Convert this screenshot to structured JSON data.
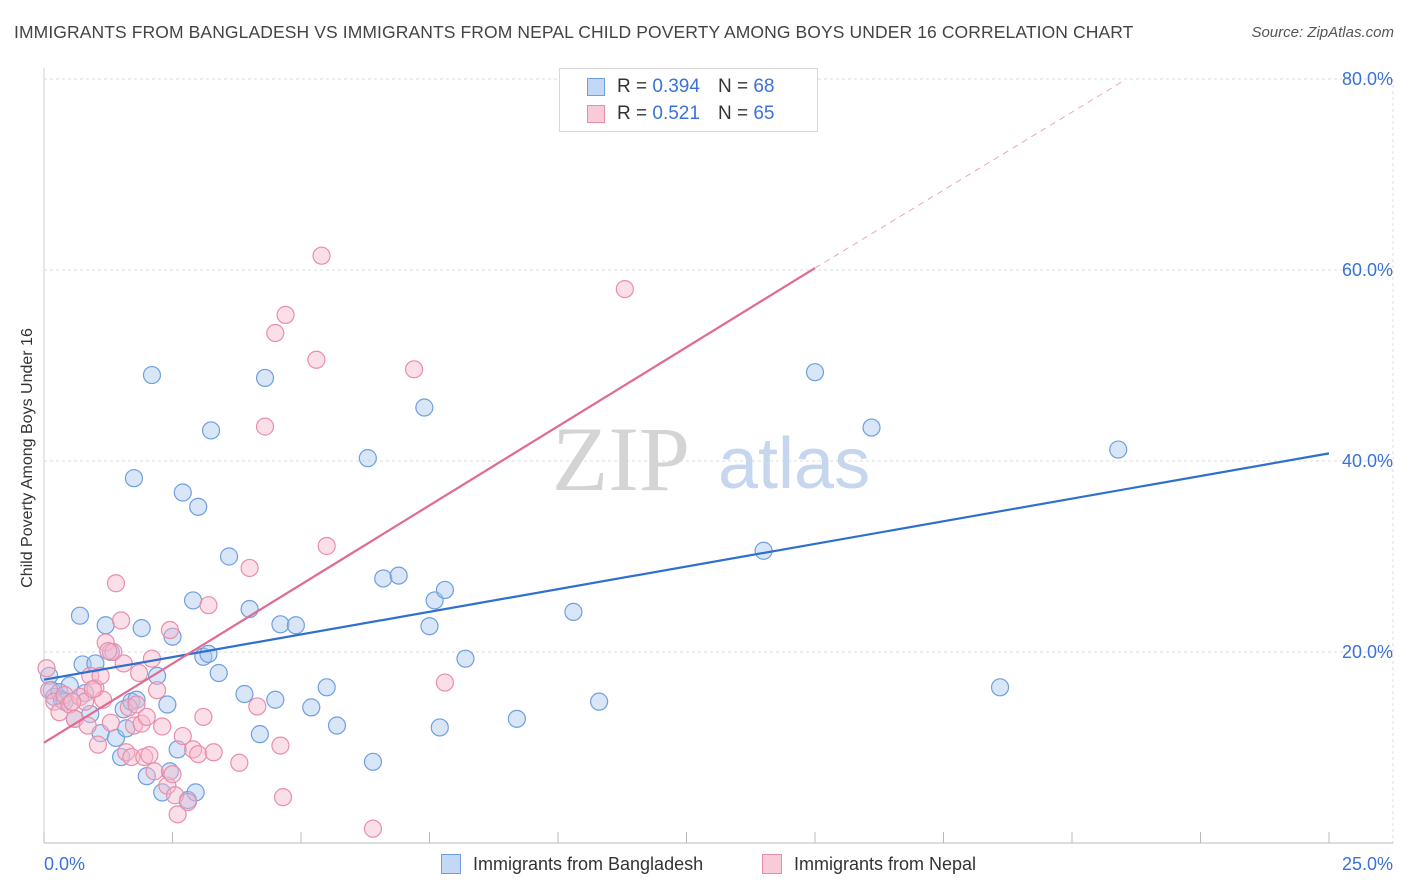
{
  "title": "IMMIGRANTS FROM BANGLADESH VS IMMIGRANTS FROM NEPAL CHILD POVERTY AMONG BOYS UNDER 16 CORRELATION CHART",
  "source": "Source: ZipAtlas.com",
  "watermark": {
    "zip": "ZIP",
    "atlas": "atlas"
  },
  "legend": [
    {
      "r_label": "R =",
      "r_value": "0.394",
      "n_label": "N =",
      "n_value": "68"
    },
    {
      "r_label": "R =",
      "r_value": "0.521",
      "n_label": "N =",
      "n_value": "65"
    }
  ],
  "colors": {
    "blue_fill": "#a9c8f0",
    "blue_stroke": "#6f9fe0",
    "blue_line": "#2f6fcf",
    "pink_fill": "#f7b9cc",
    "pink_stroke": "#e98eaa",
    "pink_line": "#e06a92",
    "tick_text": "#3a72d8",
    "grid": "#dddddd"
  },
  "chart_data": {
    "type": "scatter",
    "title": "IMMIGRANTS FROM BANGLADESH VS IMMIGRANTS FROM NEPAL CHILD POVERTY AMONG BOYS UNDER 16 CORRELATION CHART",
    "xlabel": "",
    "ylabel": "Child Poverty Among Boys Under 16",
    "xlim": [
      0,
      25
    ],
    "ylim": [
      0,
      80
    ],
    "x_tick_labels": [
      "0.0%",
      "25.0%"
    ],
    "y_ticks": [
      20,
      40,
      60,
      80
    ],
    "y_tick_labels": [
      "20.0%",
      "40.0%",
      "60.0%",
      "80.0%"
    ],
    "series": [
      {
        "name": "Immigrants from Bangladesh",
        "R": 0.394,
        "N": 68,
        "trend": {
          "x0": 0,
          "y0": 17.1,
          "x1": 25,
          "y1": 40.8
        },
        "points": [
          [
            0.1,
            17.5
          ],
          [
            0.15,
            16.0
          ],
          [
            0.2,
            15.3
          ],
          [
            0.3,
            15.8
          ],
          [
            0.35,
            15.0
          ],
          [
            0.4,
            14.8
          ],
          [
            0.5,
            16.5
          ],
          [
            0.6,
            13.0
          ],
          [
            0.7,
            23.8
          ],
          [
            0.75,
            18.7
          ],
          [
            0.8,
            15.7
          ],
          [
            0.9,
            13.5
          ],
          [
            1.0,
            18.8
          ],
          [
            1.1,
            11.5
          ],
          [
            1.2,
            22.8
          ],
          [
            1.3,
            20.0
          ],
          [
            1.4,
            11.0
          ],
          [
            1.5,
            9.0
          ],
          [
            1.55,
            14.0
          ],
          [
            1.6,
            12.0
          ],
          [
            1.7,
            14.8
          ],
          [
            1.75,
            38.2
          ],
          [
            1.8,
            15.0
          ],
          [
            1.9,
            22.5
          ],
          [
            2.0,
            7.0
          ],
          [
            2.1,
            49.0
          ],
          [
            2.2,
            17.5
          ],
          [
            2.3,
            5.3
          ],
          [
            2.4,
            14.5
          ],
          [
            2.5,
            21.6
          ],
          [
            2.6,
            9.8
          ],
          [
            2.7,
            36.7
          ],
          [
            2.8,
            4.5
          ],
          [
            2.9,
            25.4
          ],
          [
            2.95,
            5.3
          ],
          [
            3.0,
            35.2
          ],
          [
            3.1,
            19.5
          ],
          [
            3.2,
            19.8
          ],
          [
            3.25,
            43.2
          ],
          [
            3.4,
            17.8
          ],
          [
            3.6,
            30.0
          ],
          [
            3.9,
            15.6
          ],
          [
            4.0,
            24.5
          ],
          [
            4.2,
            11.4
          ],
          [
            4.3,
            48.7
          ],
          [
            4.5,
            15.0
          ],
          [
            4.6,
            22.9
          ],
          [
            4.9,
            22.8
          ],
          [
            5.2,
            14.2
          ],
          [
            5.5,
            16.3
          ],
          [
            5.7,
            12.3
          ],
          [
            6.3,
            40.3
          ],
          [
            6.4,
            8.5
          ],
          [
            6.6,
            27.7
          ],
          [
            6.9,
            28.0
          ],
          [
            7.4,
            45.6
          ],
          [
            7.5,
            22.7
          ],
          [
            7.6,
            25.4
          ],
          [
            7.7,
            12.1
          ],
          [
            7.8,
            26.5
          ],
          [
            8.2,
            19.3
          ],
          [
            9.2,
            13.0
          ],
          [
            10.3,
            24.2
          ],
          [
            10.8,
            14.8
          ],
          [
            14.0,
            30.6
          ],
          [
            15.0,
            49.3
          ],
          [
            16.1,
            43.5
          ],
          [
            18.6,
            16.3
          ],
          [
            20.9,
            41.2
          ],
          [
            2.45,
            7.5
          ]
        ]
      },
      {
        "name": "Immigrants from Nepal",
        "R": 0.521,
        "N": 65,
        "trend": {
          "x0": 0,
          "y0": 10.5,
          "x1": 15,
          "y1": 60.2
        },
        "trend_dashed": {
          "x0": 15,
          "y0": 60.2,
          "x1": 21,
          "y1": 79.8
        },
        "points": [
          [
            0.05,
            18.3
          ],
          [
            0.1,
            16.0
          ],
          [
            0.2,
            14.8
          ],
          [
            0.3,
            13.7
          ],
          [
            0.4,
            15.5
          ],
          [
            0.5,
            14.5
          ],
          [
            0.6,
            13.0
          ],
          [
            0.7,
            15.3
          ],
          [
            0.8,
            14.8
          ],
          [
            0.85,
            12.3
          ],
          [
            0.9,
            17.5
          ],
          [
            1.0,
            16.2
          ],
          [
            1.05,
            10.3
          ],
          [
            1.1,
            17.5
          ],
          [
            1.15,
            15.0
          ],
          [
            1.2,
            21.0
          ],
          [
            1.3,
            12.6
          ],
          [
            1.35,
            20.0
          ],
          [
            1.4,
            27.2
          ],
          [
            1.5,
            23.3
          ],
          [
            1.55,
            18.8
          ],
          [
            1.6,
            9.5
          ],
          [
            1.65,
            14.2
          ],
          [
            1.7,
            9.0
          ],
          [
            1.75,
            12.3
          ],
          [
            1.8,
            14.5
          ],
          [
            1.85,
            17.8
          ],
          [
            1.9,
            12.5
          ],
          [
            1.95,
            9.0
          ],
          [
            2.0,
            13.2
          ],
          [
            2.05,
            9.2
          ],
          [
            2.1,
            19.3
          ],
          [
            2.15,
            7.5
          ],
          [
            2.2,
            16.0
          ],
          [
            2.3,
            12.2
          ],
          [
            2.4,
            6.0
          ],
          [
            2.45,
            22.3
          ],
          [
            2.5,
            7.2
          ],
          [
            2.55,
            5.0
          ],
          [
            2.6,
            3.0
          ],
          [
            2.7,
            11.2
          ],
          [
            2.8,
            4.3
          ],
          [
            2.9,
            9.8
          ],
          [
            3.0,
            9.3
          ],
          [
            3.1,
            13.2
          ],
          [
            3.2,
            24.9
          ],
          [
            3.3,
            9.5
          ],
          [
            3.8,
            8.4
          ],
          [
            4.0,
            28.8
          ],
          [
            4.15,
            14.3
          ],
          [
            4.3,
            43.6
          ],
          [
            4.5,
            53.4
          ],
          [
            4.6,
            10.2
          ],
          [
            4.65,
            4.8
          ],
          [
            4.7,
            55.3
          ],
          [
            5.3,
            50.6
          ],
          [
            5.4,
            61.5
          ],
          [
            5.5,
            31.1
          ],
          [
            6.4,
            1.5
          ],
          [
            7.2,
            49.6
          ],
          [
            7.8,
            16.8
          ],
          [
            11.3,
            58.0
          ],
          [
            1.25,
            20.1
          ],
          [
            0.55,
            14.8
          ],
          [
            0.95,
            16.1
          ]
        ]
      }
    ]
  },
  "bottom_legend": [
    {
      "label": "Immigrants from Bangladesh"
    },
    {
      "label": "Immigrants from Nepal"
    }
  ]
}
